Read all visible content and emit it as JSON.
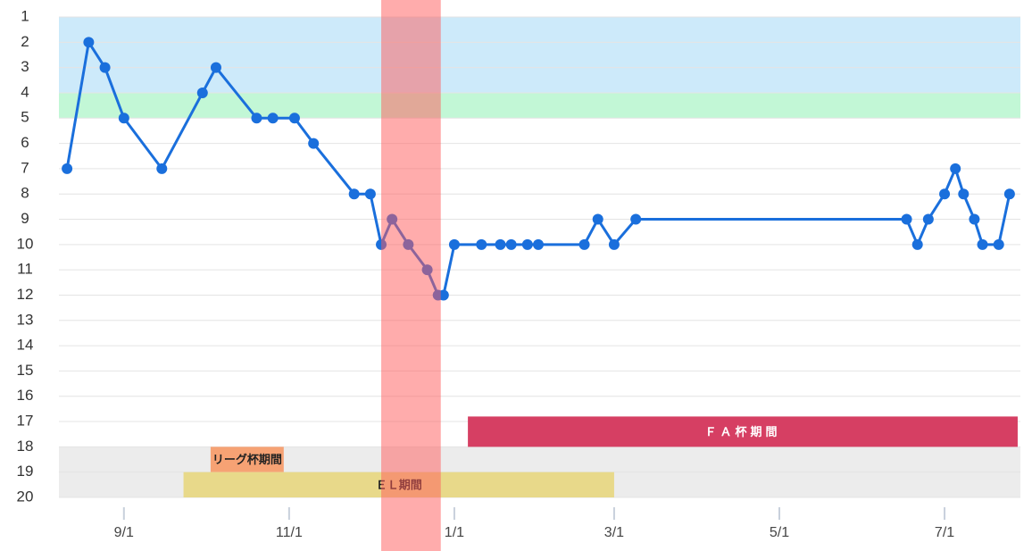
{
  "chart_data": {
    "type": "line",
    "x": [
      "8/11",
      "8/19",
      "8/25",
      "9/1",
      "9/15",
      "9/30",
      "10/5",
      "10/20",
      "10/26",
      "11/3",
      "11/10",
      "11/25",
      "12/1",
      "12/5",
      "12/9",
      "12/15",
      "12/22",
      "12/26",
      "12/28",
      "1/1",
      "1/11",
      "1/18",
      "1/22",
      "1/28",
      "2/1",
      "2/18",
      "2/23",
      "3/1",
      "3/9",
      "6/17",
      "6/21",
      "6/25",
      "7/1",
      "7/5",
      "7/8",
      "7/12",
      "7/15",
      "7/21",
      "7/25"
    ],
    "series": [
      {
        "color": "#1a6fdc",
        "values": [
          7,
          2,
          3,
          5,
          7,
          4,
          3,
          5,
          5,
          5,
          6,
          8,
          8,
          10,
          9,
          10,
          11,
          12,
          12,
          10,
          10,
          10,
          10,
          10,
          10,
          10,
          9,
          10,
          9,
          9,
          10,
          9,
          8,
          7,
          8,
          9,
          10,
          10,
          8
        ]
      }
    ],
    "xlim": [
      "8/8",
      "7/29"
    ],
    "xticks": [
      "9/1",
      "11/1",
      "1/1",
      "3/1",
      "5/1",
      "7/1"
    ],
    "ylim": [
      1,
      20
    ],
    "y_inverted": true,
    "yticks": [
      1,
      2,
      3,
      4,
      5,
      6,
      7,
      8,
      9,
      10,
      11,
      12,
      13,
      14,
      15,
      16,
      17,
      18,
      19,
      20
    ],
    "grid": true,
    "bands": [
      {
        "from": 1,
        "to": 4,
        "color": "#cdeafa"
      },
      {
        "from": 4,
        "to": 5,
        "color": "#c2f7d6"
      },
      {
        "from": 18,
        "to": 20,
        "color": "#ececec"
      }
    ],
    "highlight": {
      "start": "12/5",
      "end": "12/27",
      "color": "rgba(255,90,90,0.5)"
    },
    "periods": [
      {
        "name": "ＦＡ杯期間",
        "start": "1/6",
        "end": "7/28",
        "from": 16.8,
        "to": 18,
        "color": "#d63f63",
        "text_color": "#ffffff"
      },
      {
        "name": "リーグ杯期間",
        "start": "10/3",
        "end": "10/30",
        "from": 18,
        "to": 19,
        "color": "#f6a274",
        "text_color": "#222222"
      },
      {
        "name": "ＥＬ期間",
        "start": "9/23",
        "end": "3/1",
        "from": 19,
        "to": 20,
        "color": "#e8d98a",
        "text_color": "#222222"
      }
    ]
  }
}
